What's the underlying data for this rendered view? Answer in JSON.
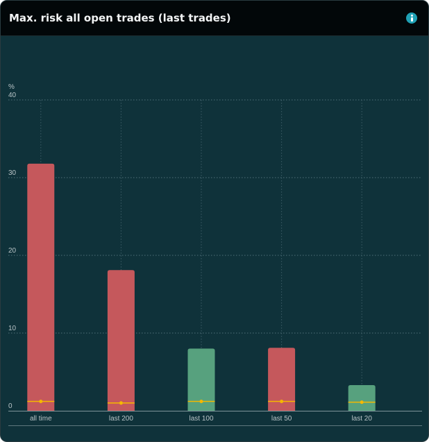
{
  "header": {
    "title": "Max. risk all open trades (last trades)"
  },
  "chart_data": {
    "type": "bar",
    "title": "Max. risk all open trades (last trades)",
    "ylabel": "%",
    "ylim": [
      0,
      40
    ],
    "yticks": [
      0,
      10,
      20,
      30,
      40
    ],
    "categories": [
      "all time",
      "last 200",
      "last 100",
      "last 50",
      "last 20"
    ],
    "values": [
      31.8,
      18.1,
      8.0,
      8.1,
      3.3
    ],
    "marker_values": [
      1.2,
      1.0,
      1.2,
      1.2,
      1.1
    ],
    "bar_colors": [
      "#c5585c",
      "#c5585c",
      "#57a17e",
      "#c5585c",
      "#57a17e"
    ],
    "marker_color": "#f5b800",
    "grid": true,
    "legend": "none"
  }
}
